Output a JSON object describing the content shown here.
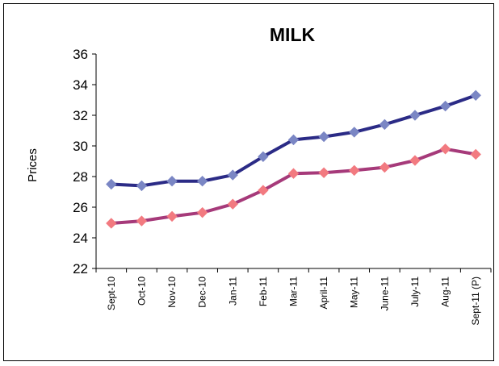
{
  "chart_data": {
    "type": "line",
    "title": "MILK",
    "xlabel": "",
    "ylabel": "Prices",
    "ylim": [
      22,
      36
    ],
    "yticks": [
      22,
      24,
      26,
      28,
      30,
      32,
      34,
      36
    ],
    "grid": false,
    "legend": "none",
    "categories": [
      "Sept-10",
      "Oct-10",
      "Nov-10",
      "Dec-10",
      "Jan-11",
      "Feb-11",
      "Mar-11",
      "April-11",
      "May-11",
      "June-11",
      "July-11",
      "Aug-11",
      "Sept-11 (P)"
    ],
    "series": [
      {
        "color": "#2b2b86",
        "marker_color": "#7a86c4",
        "values": [
          27.5,
          27.4,
          27.7,
          27.7,
          28.1,
          29.3,
          30.4,
          30.6,
          30.9,
          31.4,
          32.0,
          32.6,
          33.3
        ]
      },
      {
        "color": "#a63a7a",
        "marker_color": "#f27a80",
        "values": [
          24.95,
          25.1,
          25.4,
          25.65,
          26.2,
          27.1,
          28.2,
          28.25,
          28.4,
          28.6,
          29.05,
          29.8,
          29.45
        ]
      }
    ]
  }
}
